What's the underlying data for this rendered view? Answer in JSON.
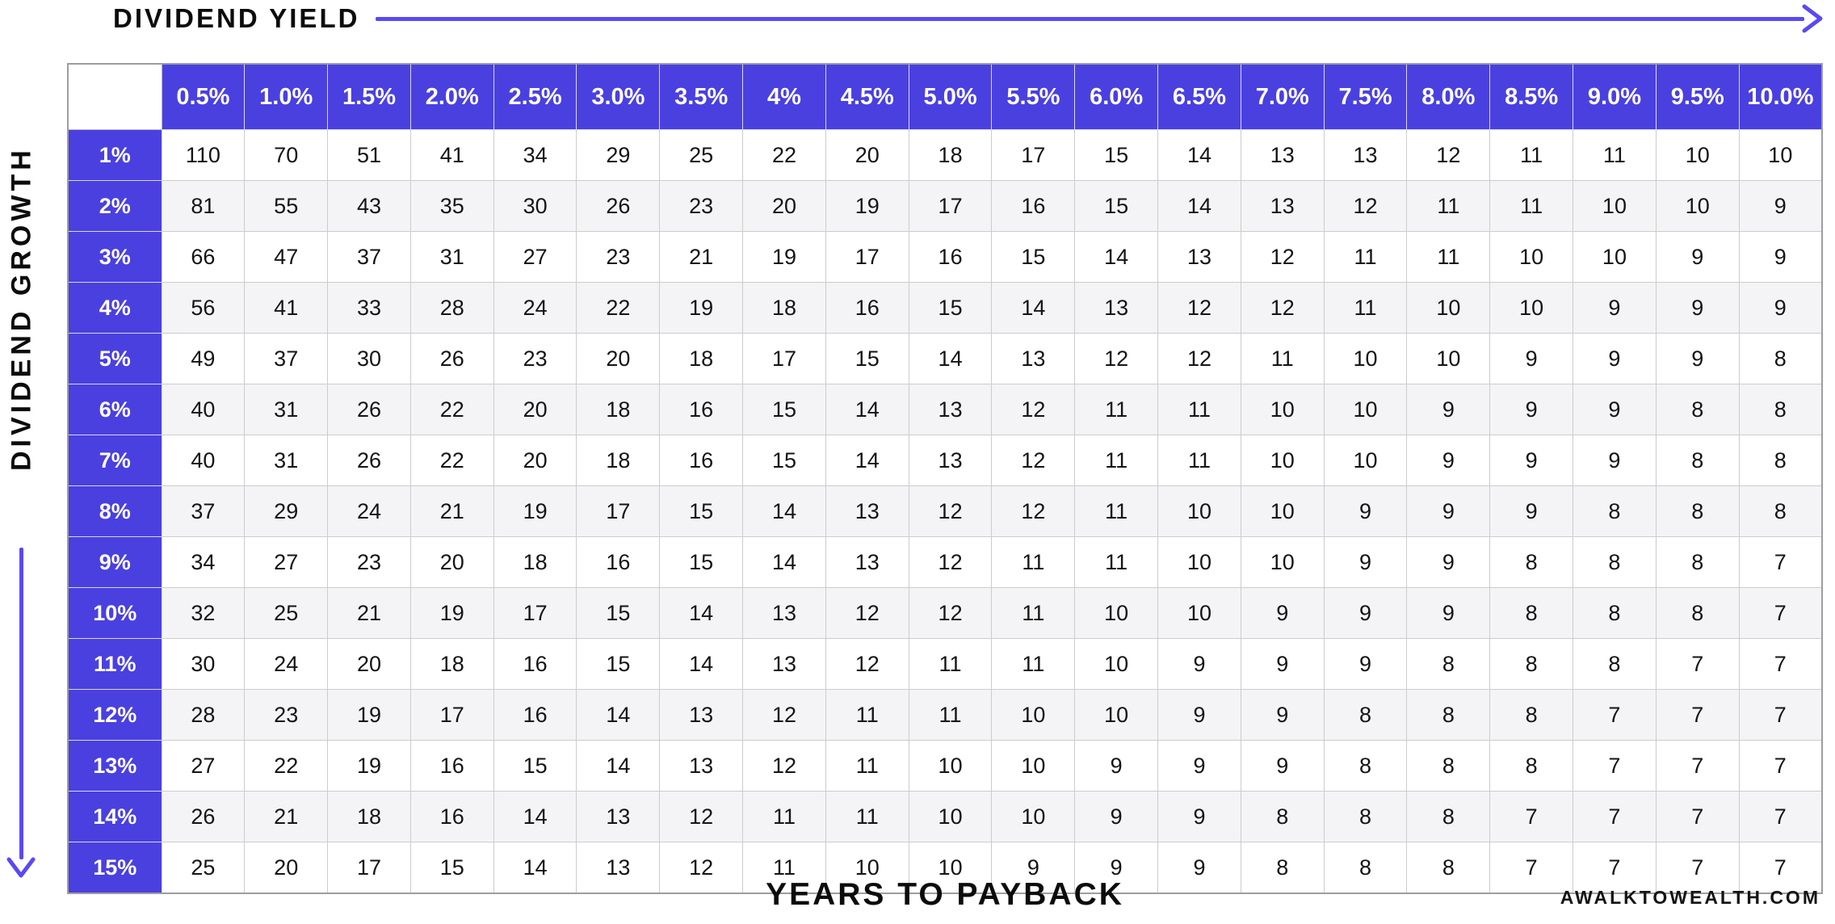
{
  "colors": {
    "header_bg": "#4a40e0",
    "arrow": "#5a49f3",
    "alt_row_bg": "#f4f4f6",
    "grid_line": "#cccccc",
    "header_text": "#ffffff",
    "body_text": "#141414"
  },
  "labels": {
    "top_axis": "DIVIDEND YIELD",
    "left_axis": "DIVIDEND GROWTH",
    "bottom_axis": "YEARS TO PAYBACK",
    "watermark": "AWALKTOWEALTH.COM"
  },
  "icons": {
    "top_arrow": "right-arrow-icon",
    "left_arrow": "down-arrow-icon"
  },
  "chart_data": {
    "type": "table",
    "title": "YEARS TO PAYBACK",
    "x_axis_label": "DIVIDEND YIELD",
    "y_axis_label": "DIVIDEND GROWTH",
    "columns": [
      "0.5%",
      "1.0%",
      "1.5%",
      "2.0%",
      "2.5%",
      "3.0%",
      "3.5%",
      "4%",
      "4.5%",
      "5.0%",
      "5.5%",
      "6.0%",
      "6.5%",
      "7.0%",
      "7.5%",
      "8.0%",
      "8.5%",
      "9.0%",
      "9.5%",
      "10.0%"
    ],
    "rows": [
      "1%",
      "2%",
      "3%",
      "4%",
      "5%",
      "6%",
      "7%",
      "8%",
      "9%",
      "10%",
      "11%",
      "12%",
      "13%",
      "14%",
      "15%"
    ],
    "values": [
      [
        110,
        70,
        51,
        41,
        34,
        29,
        25,
        22,
        20,
        18,
        17,
        15,
        14,
        13,
        13,
        12,
        11,
        11,
        10,
        10
      ],
      [
        81,
        55,
        43,
        35,
        30,
        26,
        23,
        20,
        19,
        17,
        16,
        15,
        14,
        13,
        12,
        11,
        11,
        10,
        10,
        9
      ],
      [
        66,
        47,
        37,
        31,
        27,
        23,
        21,
        19,
        17,
        16,
        15,
        14,
        13,
        12,
        11,
        11,
        10,
        10,
        9,
        9
      ],
      [
        56,
        41,
        33,
        28,
        24,
        22,
        19,
        18,
        16,
        15,
        14,
        13,
        12,
        12,
        11,
        10,
        10,
        9,
        9,
        9
      ],
      [
        49,
        37,
        30,
        26,
        23,
        20,
        18,
        17,
        15,
        14,
        13,
        12,
        12,
        11,
        10,
        10,
        9,
        9,
        9,
        8
      ],
      [
        40,
        31,
        26,
        22,
        20,
        18,
        16,
        15,
        14,
        13,
        12,
        11,
        11,
        10,
        10,
        9,
        9,
        9,
        8,
        8
      ],
      [
        40,
        31,
        26,
        22,
        20,
        18,
        16,
        15,
        14,
        13,
        12,
        11,
        11,
        10,
        10,
        9,
        9,
        9,
        8,
        8
      ],
      [
        37,
        29,
        24,
        21,
        19,
        17,
        15,
        14,
        13,
        12,
        12,
        11,
        10,
        10,
        9,
        9,
        9,
        8,
        8,
        8
      ],
      [
        34,
        27,
        23,
        20,
        18,
        16,
        15,
        14,
        13,
        12,
        11,
        11,
        10,
        10,
        9,
        9,
        8,
        8,
        8,
        7
      ],
      [
        32,
        25,
        21,
        19,
        17,
        15,
        14,
        13,
        12,
        12,
        11,
        10,
        10,
        9,
        9,
        9,
        8,
        8,
        8,
        7
      ],
      [
        30,
        24,
        20,
        18,
        16,
        15,
        14,
        13,
        12,
        11,
        11,
        10,
        9,
        9,
        9,
        8,
        8,
        8,
        7,
        7
      ],
      [
        28,
        23,
        19,
        17,
        16,
        14,
        13,
        12,
        11,
        11,
        10,
        10,
        9,
        9,
        8,
        8,
        8,
        7,
        7,
        7
      ],
      [
        27,
        22,
        19,
        16,
        15,
        14,
        13,
        12,
        11,
        10,
        10,
        9,
        9,
        9,
        8,
        8,
        8,
        7,
        7,
        7
      ],
      [
        26,
        21,
        18,
        16,
        14,
        13,
        12,
        11,
        11,
        10,
        10,
        9,
        9,
        8,
        8,
        8,
        7,
        7,
        7,
        7
      ],
      [
        25,
        20,
        17,
        15,
        14,
        13,
        12,
        11,
        10,
        10,
        9,
        9,
        9,
        8,
        8,
        8,
        7,
        7,
        7,
        7
      ]
    ]
  }
}
